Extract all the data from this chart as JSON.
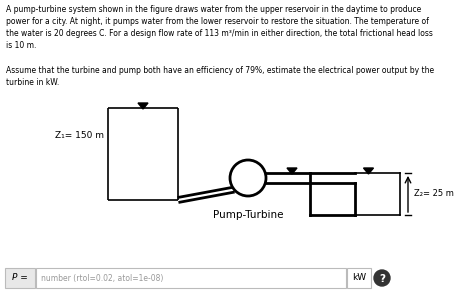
{
  "top_text": "A pump-turbine system shown in the figure draws water from the upper reservoir in the daytime to produce\npower for a city. At night, it pumps water from the lower reservoir to restore the situation. The temperature of\nthe water is 20 degrees C. For a design flow rate of 113 m³/min in either direction, the total frictional head loss\nis 10 m.",
  "body_text": "Assume that the turbine and pump both have an efficiency of 79%, estimate the electrical power output by the\nturbine in kW.",
  "z1_label": "Z₁= 150 m",
  "z2_label": "Z₂= 25 m",
  "pump_turbine_label": "Pump-Turbine",
  "p_label": "P =",
  "input_placeholder": "number (rtol=0.02, atol=1e-08)",
  "unit_label": "kW",
  "bg_color": "#ffffff",
  "text_color": "#000000"
}
